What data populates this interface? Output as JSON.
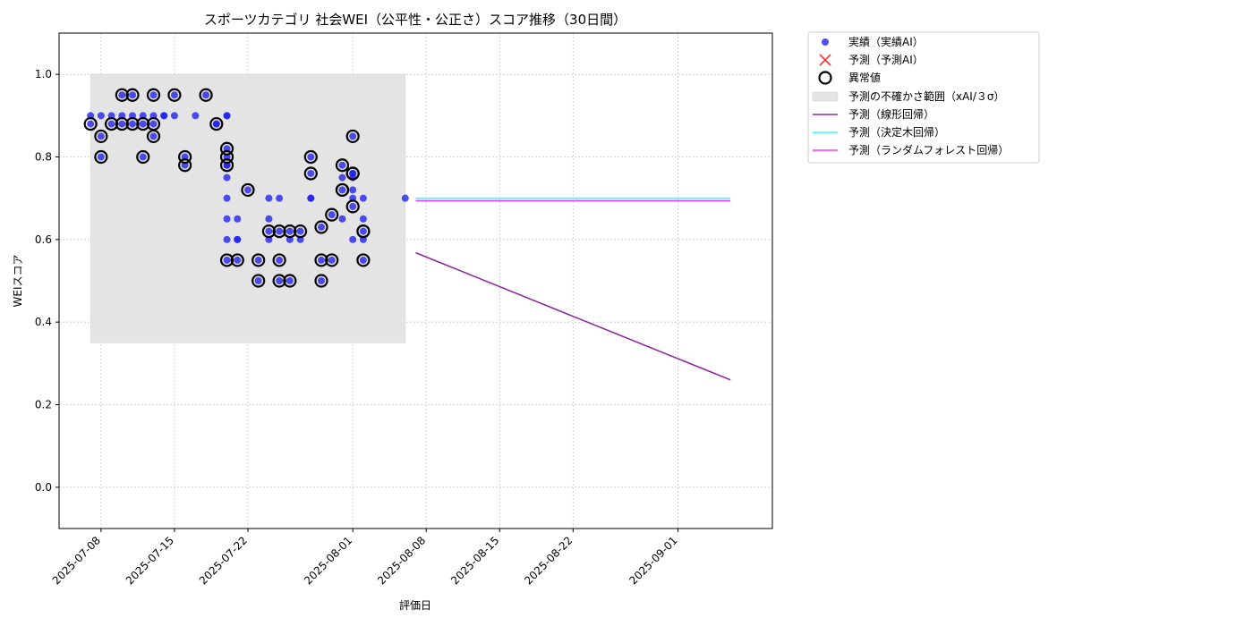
{
  "chart_data": {
    "type": "scatter",
    "title": "スポーツカテゴリ 社会WEI（公平性・公正さ）スコア推移（30日間）",
    "xlabel": "評価日",
    "ylabel": "WEIスコア",
    "xlim": [
      "2025-07-04",
      "2025-09-10"
    ],
    "ylim": [
      -0.1,
      1.1
    ],
    "xticks": [
      "2025-07-08",
      "2025-07-15",
      "2025-07-22",
      "2025-08-01",
      "2025-08-08",
      "2025-08-15",
      "2025-08-22",
      "2025-09-01"
    ],
    "yticks": [
      "0.0",
      "0.2",
      "0.4",
      "0.6",
      "0.8",
      "1.0"
    ],
    "grid": true,
    "legend_position": "outside-upper-right",
    "colors": {
      "actual": "#2222ee",
      "predicted": "#ff3333",
      "anomaly": "#000000",
      "band": "#e4e4e4",
      "linear": "#8e2a9e",
      "tree": "#33ffff",
      "forest": "#ff33ff"
    },
    "uncertainty_band": {
      "x": [
        "2025-07-07",
        "2025-08-06"
      ],
      "y": [
        0.35,
        1.0
      ]
    },
    "series": [
      {
        "name": "実績（実績AI）",
        "kind": "scatter",
        "points": [
          [
            "2025-07-07",
            0.88
          ],
          [
            "2025-07-07",
            0.9
          ],
          [
            "2025-07-08",
            0.8
          ],
          [
            "2025-07-08",
            0.9
          ],
          [
            "2025-07-08",
            0.85
          ],
          [
            "2025-07-09",
            0.88
          ],
          [
            "2025-07-09",
            0.9
          ],
          [
            "2025-07-10",
            0.9
          ],
          [
            "2025-07-10",
            0.88
          ],
          [
            "2025-07-10",
            0.95
          ],
          [
            "2025-07-11",
            0.9
          ],
          [
            "2025-07-11",
            0.88
          ],
          [
            "2025-07-11",
            0.95
          ],
          [
            "2025-07-12",
            0.9
          ],
          [
            "2025-07-12",
            0.8
          ],
          [
            "2025-07-12",
            0.88
          ],
          [
            "2025-07-13",
            0.95
          ],
          [
            "2025-07-13",
            0.9
          ],
          [
            "2025-07-13",
            0.85
          ],
          [
            "2025-07-13",
            0.88
          ],
          [
            "2025-07-14",
            0.9
          ],
          [
            "2025-07-14",
            0.9
          ],
          [
            "2025-07-15",
            0.9
          ],
          [
            "2025-07-15",
            0.95
          ],
          [
            "2025-07-16",
            0.78
          ],
          [
            "2025-07-16",
            0.8
          ],
          [
            "2025-07-17",
            0.9
          ],
          [
            "2025-07-18",
            0.95
          ],
          [
            "2025-07-19",
            0.88
          ],
          [
            "2025-07-19",
            0.88
          ],
          [
            "2025-07-20",
            0.78
          ],
          [
            "2025-07-20",
            0.9
          ],
          [
            "2025-07-20",
            0.9
          ],
          [
            "2025-07-20",
            0.82
          ],
          [
            "2025-07-20",
            0.8
          ],
          [
            "2025-07-20",
            0.78
          ],
          [
            "2025-07-20",
            0.75
          ],
          [
            "2025-07-20",
            0.7
          ],
          [
            "2025-07-20",
            0.65
          ],
          [
            "2025-07-20",
            0.6
          ],
          [
            "2025-07-20",
            0.55
          ],
          [
            "2025-07-21",
            0.55
          ],
          [
            "2025-07-21",
            0.6
          ],
          [
            "2025-07-21",
            0.65
          ],
          [
            "2025-07-21",
            0.6
          ],
          [
            "2025-07-22",
            0.72
          ],
          [
            "2025-07-23",
            0.55
          ],
          [
            "2025-07-23",
            0.5
          ],
          [
            "2025-07-24",
            0.62
          ],
          [
            "2025-07-24",
            0.6
          ],
          [
            "2025-07-24",
            0.65
          ],
          [
            "2025-07-24",
            0.7
          ],
          [
            "2025-07-25",
            0.7
          ],
          [
            "2025-07-25",
            0.62
          ],
          [
            "2025-07-25",
            0.55
          ],
          [
            "2025-07-25",
            0.5
          ],
          [
            "2025-07-26",
            0.62
          ],
          [
            "2025-07-26",
            0.6
          ],
          [
            "2025-07-26",
            0.5
          ],
          [
            "2025-07-27",
            0.62
          ],
          [
            "2025-07-27",
            0.6
          ],
          [
            "2025-07-28",
            0.7
          ],
          [
            "2025-07-28",
            0.8
          ],
          [
            "2025-07-28",
            0.76
          ],
          [
            "2025-07-28",
            0.7
          ],
          [
            "2025-07-29",
            0.63
          ],
          [
            "2025-07-29",
            0.55
          ],
          [
            "2025-07-29",
            0.5
          ],
          [
            "2025-07-30",
            0.55
          ],
          [
            "2025-07-30",
            0.66
          ],
          [
            "2025-07-31",
            0.78
          ],
          [
            "2025-07-31",
            0.75
          ],
          [
            "2025-07-31",
            0.72
          ],
          [
            "2025-07-31",
            0.65
          ],
          [
            "2025-08-01",
            0.76
          ],
          [
            "2025-08-01",
            0.72
          ],
          [
            "2025-08-01",
            0.68
          ],
          [
            "2025-08-01",
            0.6
          ],
          [
            "2025-08-01",
            0.85
          ],
          [
            "2025-08-01",
            0.76
          ],
          [
            "2025-08-01",
            0.75
          ],
          [
            "2025-08-01",
            0.7
          ],
          [
            "2025-08-02",
            0.7
          ],
          [
            "2025-08-02",
            0.65
          ],
          [
            "2025-08-02",
            0.62
          ],
          [
            "2025-08-02",
            0.6
          ],
          [
            "2025-08-02",
            0.55
          ],
          [
            "2025-08-06",
            0.7
          ]
        ]
      },
      {
        "name": "予測（予測AI）",
        "kind": "scatter",
        "points": []
      },
      {
        "name": "異常値",
        "kind": "scatter",
        "points": [
          [
            "2025-07-07",
            0.88
          ],
          [
            "2025-07-08",
            0.8
          ],
          [
            "2025-07-08",
            0.85
          ],
          [
            "2025-07-09",
            0.88
          ],
          [
            "2025-07-10",
            0.95
          ],
          [
            "2025-07-10",
            0.88
          ],
          [
            "2025-07-11",
            0.95
          ],
          [
            "2025-07-11",
            0.88
          ],
          [
            "2025-07-12",
            0.8
          ],
          [
            "2025-07-12",
            0.88
          ],
          [
            "2025-07-13",
            0.95
          ],
          [
            "2025-07-13",
            0.85
          ],
          [
            "2025-07-13",
            0.88
          ],
          [
            "2025-07-15",
            0.95
          ],
          [
            "2025-07-16",
            0.8
          ],
          [
            "2025-07-16",
            0.78
          ],
          [
            "2025-07-18",
            0.95
          ],
          [
            "2025-07-19",
            0.88
          ],
          [
            "2025-07-20",
            0.82
          ],
          [
            "2025-07-20",
            0.8
          ],
          [
            "2025-07-20",
            0.78
          ],
          [
            "2025-07-20",
            0.55
          ],
          [
            "2025-07-21",
            0.55
          ],
          [
            "2025-07-22",
            0.72
          ],
          [
            "2025-07-23",
            0.55
          ],
          [
            "2025-07-23",
            0.5
          ],
          [
            "2025-07-24",
            0.62
          ],
          [
            "2025-07-25",
            0.62
          ],
          [
            "2025-07-25",
            0.55
          ],
          [
            "2025-07-25",
            0.5
          ],
          [
            "2025-07-26",
            0.62
          ],
          [
            "2025-07-26",
            0.5
          ],
          [
            "2025-07-27",
            0.62
          ],
          [
            "2025-07-28",
            0.8
          ],
          [
            "2025-07-28",
            0.76
          ],
          [
            "2025-07-29",
            0.63
          ],
          [
            "2025-07-29",
            0.55
          ],
          [
            "2025-07-29",
            0.5
          ],
          [
            "2025-07-30",
            0.55
          ],
          [
            "2025-07-30",
            0.66
          ],
          [
            "2025-07-31",
            0.78
          ],
          [
            "2025-07-31",
            0.72
          ],
          [
            "2025-07-31",
            0.72
          ],
          [
            "2025-08-01",
            0.76
          ],
          [
            "2025-08-01",
            0.68
          ],
          [
            "2025-08-01",
            0.85
          ],
          [
            "2025-08-01",
            0.76
          ],
          [
            "2025-08-02",
            0.62
          ],
          [
            "2025-08-02",
            0.62
          ],
          [
            "2025-08-02",
            0.55
          ]
        ]
      },
      {
        "name": "予測の不確かさ範囲（xAI/３σ）",
        "kind": "band"
      },
      {
        "name": "予測（線形回帰）",
        "kind": "line",
        "points": [
          [
            "2025-08-07",
            0.568
          ],
          [
            "2025-09-06",
            0.26
          ]
        ]
      },
      {
        "name": "予測（決定木回帰）",
        "kind": "line",
        "points": [
          [
            "2025-08-07",
            0.7
          ],
          [
            "2025-09-06",
            0.7
          ]
        ]
      },
      {
        "name": "予測（ランダムフォレスト回帰）",
        "kind": "line",
        "points": [
          [
            "2025-08-07",
            0.694
          ],
          [
            "2025-09-06",
            0.694
          ]
        ]
      }
    ]
  }
}
